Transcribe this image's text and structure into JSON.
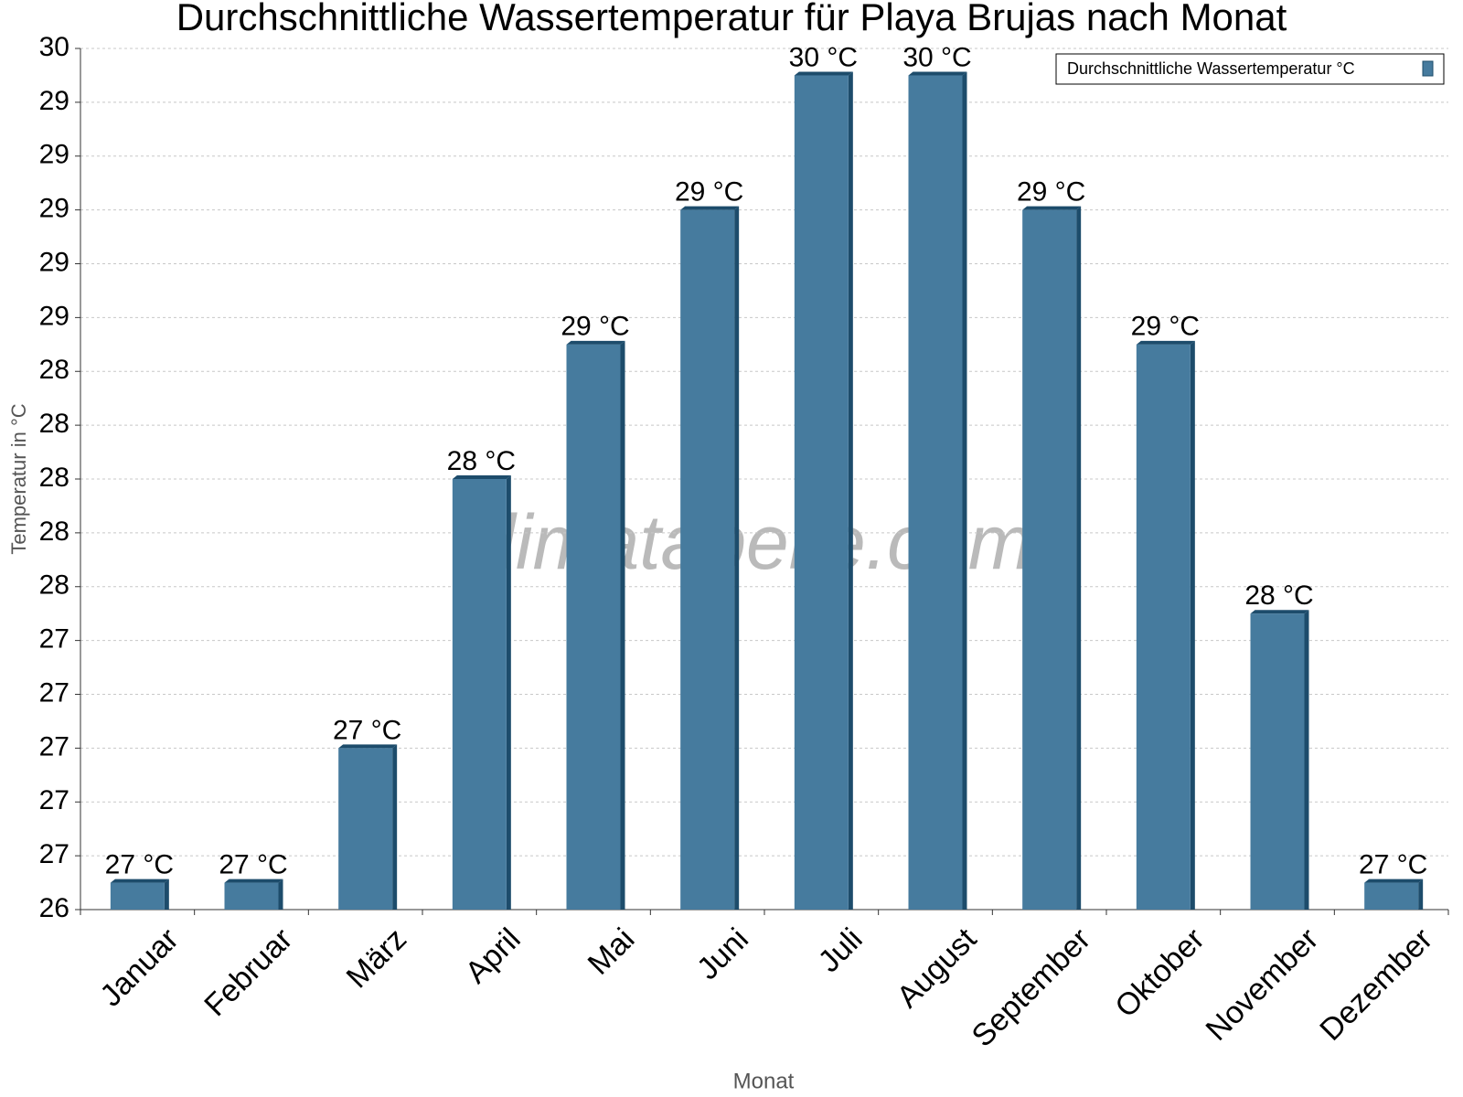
{
  "chart_data": {
    "type": "bar",
    "title": "Durchschnittliche Wassertemperatur für Playa Brujas nach Monat",
    "watermark": "klimatabelle.com",
    "x_label": "Monat",
    "y_label": "Temperatur in °C",
    "categories": [
      "Januar",
      "Februar",
      "März",
      "April",
      "Mai",
      "Juni",
      "Juli",
      "August",
      "September",
      "Oktober",
      "November",
      "Dezember"
    ],
    "series": [
      {
        "name": "Durchschnittliche Wassertemperatur °C",
        "color": "#467b9e",
        "values": [
          26.5,
          26.5,
          27,
          28,
          28.5,
          29,
          29.5,
          29.5,
          29,
          28.5,
          27.5,
          26.5
        ],
        "value_labels": [
          "27 °C",
          "27 °C",
          "27 °C",
          "28 °C",
          "29 °C",
          "29 °C",
          "30 °C",
          "30 °C",
          "29 °C",
          "29 °C",
          "28 °C",
          "27 °C"
        ]
      }
    ],
    "ylim": [
      26.4,
      29.6
    ],
    "yticks": [
      {
        "value": 26.4,
        "label": "26"
      },
      {
        "value": 26.6,
        "label": "27"
      },
      {
        "value": 26.8,
        "label": "27"
      },
      {
        "value": 27.0,
        "label": "27"
      },
      {
        "value": 27.2,
        "label": "27"
      },
      {
        "value": 27.4,
        "label": "27"
      },
      {
        "value": 27.6,
        "label": "28"
      },
      {
        "value": 27.8,
        "label": "28"
      },
      {
        "value": 28.0,
        "label": "28"
      },
      {
        "value": 28.2,
        "label": "28"
      },
      {
        "value": 28.4,
        "label": "28"
      },
      {
        "value": 28.6,
        "label": "29"
      },
      {
        "value": 28.8,
        "label": "29"
      },
      {
        "value": 29.0,
        "label": "29"
      },
      {
        "value": 29.2,
        "label": "29"
      },
      {
        "value": 29.4,
        "label": "29"
      },
      {
        "value": 29.6,
        "label": "30"
      }
    ],
    "grid": true,
    "legend": "top-right"
  }
}
